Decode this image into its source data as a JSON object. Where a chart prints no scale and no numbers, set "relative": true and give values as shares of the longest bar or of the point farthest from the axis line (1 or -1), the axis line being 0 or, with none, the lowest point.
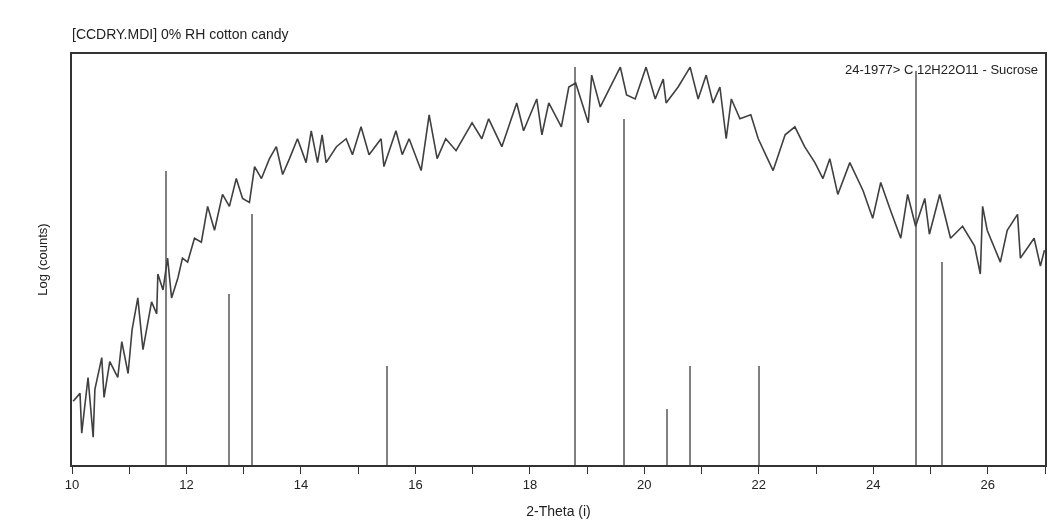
{
  "chart_data": {
    "type": "line",
    "title": "[CCDRY.MDI] 0% RH cotton candy",
    "xlabel": "2-Theta (i)",
    "ylabel": "Log (counts)",
    "annotations": [
      "24-1977> C 12H22O11 - Sucrose"
    ],
    "relative": true,
    "tick_labels": "x",
    "marker": "none",
    "line_style": "solid",
    "xlim": [
      10,
      27
    ],
    "xticks": [
      10,
      {
        "value": 11,
        "label": null
      },
      12,
      {
        "value": 13,
        "label": null
      },
      14,
      {
        "value": 15,
        "label": null
      },
      16,
      {
        "value": 17,
        "label": null
      },
      18,
      {
        "value": 19,
        "label": null
      },
      20,
      {
        "value": 21,
        "label": null
      },
      22,
      {
        "value": 23,
        "label": null
      },
      24,
      {
        "value": 25,
        "label": null
      },
      26,
      {
        "value": 27,
        "label": null
      }
    ],
    "series": [
      {
        "color": "#404040",
        "x": [
          10.02,
          10.14,
          10.17,
          10.28,
          10.37,
          10.4,
          10.52,
          10.56,
          10.66,
          10.8,
          10.87,
          10.98,
          11.05,
          11.15,
          11.24,
          11.39,
          11.48,
          11.5,
          11.59,
          11.67,
          11.74,
          11.85,
          11.93,
          12.02,
          12.14,
          12.26,
          12.37,
          12.49,
          12.63,
          12.75,
          12.87,
          12.98,
          13.1,
          13.19,
          13.31,
          13.45,
          13.57,
          13.68,
          13.8,
          13.94,
          14.09,
          14.18,
          14.29,
          14.37,
          14.44,
          14.62,
          14.79,
          14.9,
          15.05,
          15.19,
          15.4,
          15.45,
          15.66,
          15.77,
          15.89,
          16.1,
          16.24,
          16.38,
          16.53,
          16.71,
          16.99,
          17.16,
          17.28,
          17.51,
          17.77,
          17.89,
          18.12,
          18.21,
          18.33,
          18.55,
          18.68,
          18.8,
          19.02,
          19.08,
          19.23,
          19.58,
          19.69,
          19.84,
          20.03,
          20.19,
          20.33,
          20.38,
          20.59,
          20.8,
          20.94,
          21.08,
          21.2,
          21.32,
          21.43,
          21.52,
          21.67,
          21.86,
          21.99,
          22.25,
          22.46,
          22.63,
          22.8,
          22.98,
          23.12,
          23.24,
          23.38,
          23.59,
          23.82,
          23.99,
          24.13,
          24.3,
          24.48,
          24.6,
          24.74,
          24.9,
          24.98,
          25.16,
          25.35,
          25.56,
          25.77,
          25.87,
          25.91,
          25.99,
          26.22,
          26.34,
          26.52,
          26.57,
          26.81,
          26.92,
          26.99
        ],
        "values": [
          0.16,
          0.18,
          0.08,
          0.22,
          0.07,
          0.19,
          0.27,
          0.17,
          0.26,
          0.22,
          0.31,
          0.23,
          0.34,
          0.42,
          0.29,
          0.41,
          0.38,
          0.48,
          0.44,
          0.52,
          0.42,
          0.47,
          0.52,
          0.51,
          0.57,
          0.56,
          0.65,
          0.59,
          0.68,
          0.65,
          0.72,
          0.67,
          0.66,
          0.75,
          0.72,
          0.77,
          0.8,
          0.73,
          0.77,
          0.82,
          0.76,
          0.84,
          0.76,
          0.83,
          0.76,
          0.8,
          0.82,
          0.78,
          0.85,
          0.78,
          0.82,
          0.75,
          0.84,
          0.78,
          0.82,
          0.74,
          0.88,
          0.77,
          0.82,
          0.79,
          0.86,
          0.82,
          0.87,
          0.8,
          0.91,
          0.84,
          0.92,
          0.83,
          0.91,
          0.85,
          0.95,
          0.96,
          0.86,
          0.98,
          0.9,
          1.0,
          0.93,
          0.92,
          1.0,
          0.92,
          0.97,
          0.91,
          0.95,
          1.0,
          0.92,
          0.98,
          0.91,
          0.95,
          0.82,
          0.92,
          0.87,
          0.88,
          0.82,
          0.74,
          0.83,
          0.85,
          0.8,
          0.76,
          0.72,
          0.77,
          0.68,
          0.76,
          0.69,
          0.62,
          0.71,
          0.64,
          0.57,
          0.68,
          0.6,
          0.67,
          0.58,
          0.68,
          0.57,
          0.6,
          0.55,
          0.48,
          0.65,
          0.59,
          0.51,
          0.59,
          0.63,
          0.52,
          0.57,
          0.5,
          0.54
        ]
      },
      {
        "type": "bar",
        "color": "#808080",
        "x": [
          11.65,
          12.75,
          13.15,
          15.5,
          18.8,
          19.65,
          20.4,
          20.8,
          22.0,
          24.75,
          25.2
        ],
        "values": [
          0.74,
          0.43,
          0.63,
          0.25,
          1.0,
          0.87,
          0.14,
          0.25,
          0.25,
          0.99,
          0.51
        ]
      }
    ]
  }
}
